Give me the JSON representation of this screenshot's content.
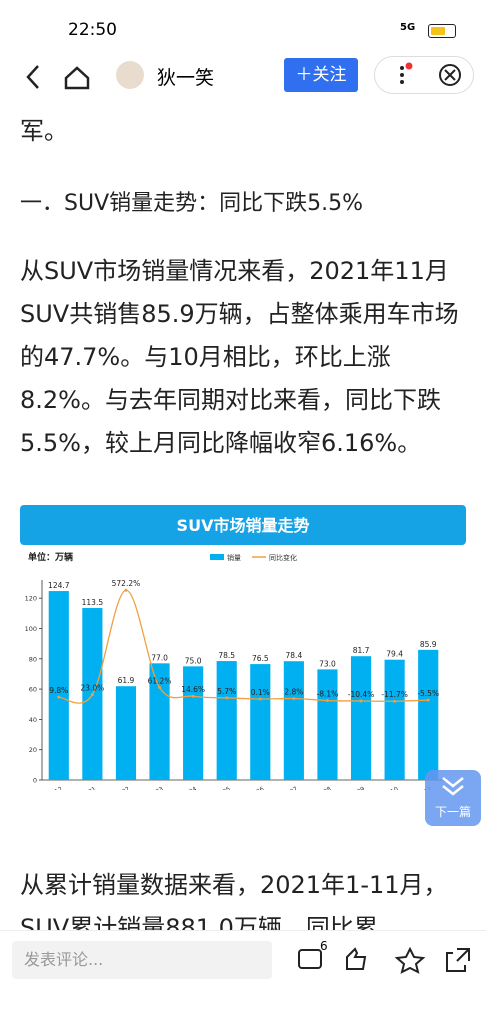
{
  "status_bar": {
    "time": "22:50",
    "network": "5G"
  },
  "nav": {
    "author": "狄一笑",
    "follow": "＋关注"
  },
  "article": {
    "paragraphs": [
      "军。",
      "一．SUV销量走势：同比下跌5.5%",
      "从SUV市场销量情况来看，2021年11月SUV共销售85.9万辆，占整体乘用车市场的47.7%。与10月相比，环比上涨8.2%。与去年同期对比来看，同比下跌5.5%，较上月同比降幅收窄6.16%。",
      "从累计销量数据来看，2021年1-11月，SUV累计销量881.0万辆，同比累"
    ]
  },
  "chart_data": {
    "type": "bar",
    "title": "SUV市场销量走势",
    "y_label": "单位：万辆",
    "categories": [
      "2020-12",
      "2021-01",
      "2021-02",
      "2021-03",
      "2021-04",
      "2021-05",
      "2021-06",
      "2021-07",
      "2021-08",
      "2021-09",
      "2021-10",
      "2021-11"
    ],
    "series": [
      {
        "name": "销量",
        "color": "#00b0f0",
        "values": [
          124.7,
          113.5,
          61.9,
          77.0,
          75.0,
          78.5,
          76.5,
          78.4,
          73.0,
          81.7,
          79.4,
          85.9
        ],
        "value_labels": [
          "124.7",
          "113.5",
          "61.9",
          "77.0",
          "75.0",
          "78.5",
          "76.5",
          "78.4",
          "73.0",
          "81.7",
          "79.4",
          "85.9"
        ]
      },
      {
        "name": "同比变化",
        "color": "#f0a040",
        "axis": "y2",
        "type": "line",
        "values": [
          9.8,
          23.0,
          572.2,
          61.2,
          14.6,
          5.7,
          0.1,
          2.8,
          -8.1,
          -10.4,
          -11.7,
          -5.5
        ],
        "value_labels": [
          "9.8%",
          "23.0%",
          "572.2%",
          "61.2%",
          "14.6%",
          "5.7%",
          "0.1%",
          "2.8%",
          "-8.1%",
          "-10.4%",
          "-11.7%",
          "-5.5%"
        ]
      }
    ],
    "ylim": [
      0,
      132
    ],
    "yticks": [
      0,
      20,
      40,
      60,
      80,
      100,
      120
    ],
    "y2lim": [
      -426,
      626
    ]
  },
  "float_button": {
    "label": "下一篇"
  },
  "bottom_bar": {
    "comment_placeholder": "发表评论...",
    "comment_count": "6"
  }
}
